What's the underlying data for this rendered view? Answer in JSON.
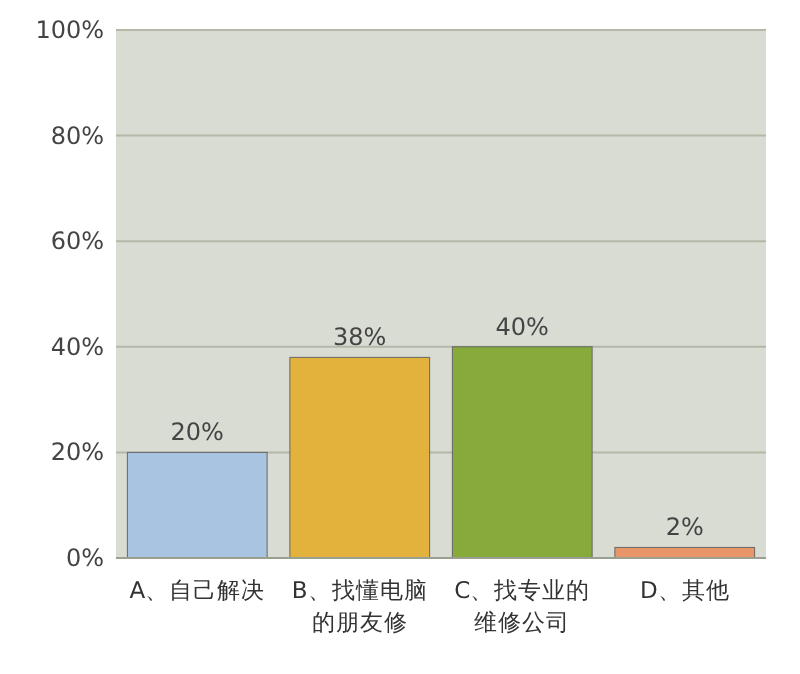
{
  "chart_data": {
    "type": "bar",
    "categories": [
      "A、自己解决",
      "B、找懂电脑的朋友修",
      "C、找专业的维修公司",
      "D、其他"
    ],
    "values": [
      20,
      38,
      40,
      2
    ],
    "colors": [
      "#a9c4e0",
      "#e3b23c",
      "#88aa3a",
      "#e9956a"
    ],
    "ylim": [
      0,
      100
    ],
    "yticks": [
      {
        "value": 0,
        "label": "0%"
      },
      {
        "value": 20,
        "label": "20%"
      },
      {
        "value": 40,
        "label": "40%"
      },
      {
        "value": 60,
        "label": "60%"
      },
      {
        "value": 80,
        "label": "80%"
      },
      {
        "value": 100,
        "label": "100%"
      }
    ],
    "value_labels": [
      "20%",
      "38%",
      "40%",
      "2%"
    ],
    "grid": "y"
  }
}
